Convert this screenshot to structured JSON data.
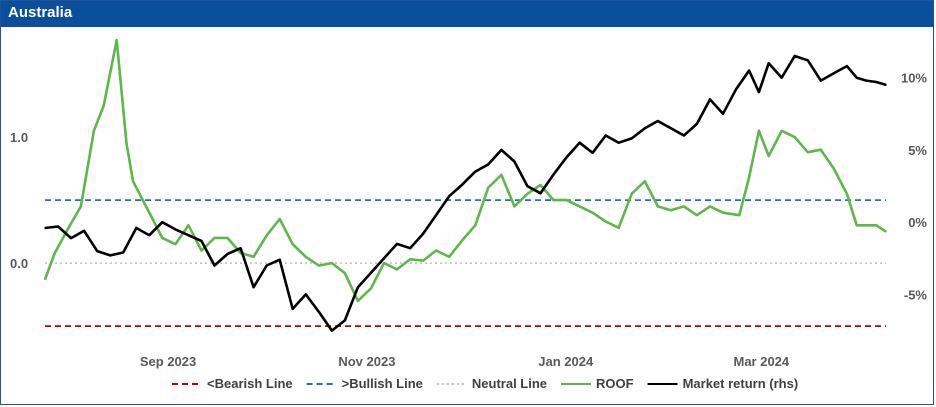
{
  "title": "Australia",
  "chart_data": {
    "type": "line",
    "title": "Australia",
    "x_ticks": [
      "Sep 2023",
      "Nov 2023",
      "Jan 2024",
      "Mar 2024"
    ],
    "y_left": {
      "ticks": [
        "0.0",
        "1.0"
      ],
      "tick_values": [
        0.0,
        1.0
      ],
      "range": [
        -0.65,
        1.85
      ]
    },
    "y_right": {
      "ticks": [
        "-5%",
        "0%",
        "5%",
        "10%"
      ],
      "tick_values": [
        -5,
        0,
        5,
        10
      ],
      "range": [
        -8.5,
        13.3
      ]
    },
    "reference_lines": [
      {
        "name": "<Bearish Line",
        "value": -0.5,
        "color": "#c00000",
        "style": "dashed"
      },
      {
        "name": ">Bullish Line",
        "value": 0.5,
        "color": "#1f6fc5",
        "style": "dashed"
      },
      {
        "name": "Neutral Line",
        "value": 0.0,
        "color": "#bfbfbf",
        "style": "dotted"
      }
    ],
    "series": [
      {
        "name": "ROOF",
        "axis": "left",
        "color": "#5cb84a",
        "x": [
          "2023-08-01",
          "2023-08-04",
          "2023-08-08",
          "2023-08-12",
          "2023-08-16",
          "2023-08-19",
          "2023-08-23",
          "2023-08-26",
          "2023-08-28",
          "2023-08-31",
          "2023-09-03",
          "2023-09-06",
          "2023-09-10",
          "2023-09-14",
          "2023-09-18",
          "2023-09-22",
          "2023-09-26",
          "2023-09-30",
          "2023-10-04",
          "2023-10-08",
          "2023-10-12",
          "2023-10-16",
          "2023-10-20",
          "2023-10-24",
          "2023-10-28",
          "2023-11-01",
          "2023-11-05",
          "2023-11-09",
          "2023-11-13",
          "2023-11-17",
          "2023-11-21",
          "2023-11-25",
          "2023-11-29",
          "2023-12-03",
          "2023-12-07",
          "2023-12-11",
          "2023-12-15",
          "2023-12-19",
          "2023-12-23",
          "2023-12-27",
          "2023-12-31",
          "2024-01-04",
          "2024-01-08",
          "2024-01-12",
          "2024-01-16",
          "2024-01-20",
          "2024-01-24",
          "2024-01-28",
          "2024-02-01",
          "2024-02-05",
          "2024-02-09",
          "2024-02-13",
          "2024-02-17",
          "2024-02-21",
          "2024-02-25",
          "2024-03-01",
          "2024-03-04",
          "2024-03-07",
          "2024-03-10",
          "2024-03-14",
          "2024-03-18",
          "2024-03-22",
          "2024-03-26",
          "2024-03-30",
          "2024-04-03",
          "2024-04-06",
          "2024-04-09",
          "2024-04-12",
          "2024-04-15"
        ],
        "values": [
          -0.13,
          0.08,
          0.27,
          0.45,
          1.05,
          1.25,
          1.77,
          0.95,
          0.65,
          0.5,
          0.35,
          0.2,
          0.15,
          0.3,
          0.1,
          0.2,
          0.2,
          0.08,
          0.05,
          0.22,
          0.35,
          0.15,
          0.05,
          -0.02,
          0.0,
          -0.08,
          -0.3,
          -0.2,
          0.0,
          -0.05,
          0.03,
          0.02,
          0.1,
          0.05,
          0.18,
          0.3,
          0.6,
          0.7,
          0.45,
          0.55,
          0.62,
          0.5,
          0.5,
          0.45,
          0.4,
          0.33,
          0.28,
          0.55,
          0.65,
          0.45,
          0.42,
          0.45,
          0.38,
          0.45,
          0.4,
          0.38,
          0.68,
          1.05,
          0.85,
          1.05,
          1.0,
          0.88,
          0.9,
          0.75,
          0.55,
          0.3,
          0.3,
          0.3,
          0.25
        ]
      },
      {
        "name": "Market return (rhs)",
        "axis": "right",
        "color": "#000000",
        "x": [
          "2023-08-01",
          "2023-08-05",
          "2023-08-09",
          "2023-08-13",
          "2023-08-17",
          "2023-08-21",
          "2023-08-25",
          "2023-08-29",
          "2023-09-02",
          "2023-09-06",
          "2023-09-10",
          "2023-09-14",
          "2023-09-18",
          "2023-09-22",
          "2023-09-26",
          "2023-09-30",
          "2023-10-04",
          "2023-10-08",
          "2023-10-12",
          "2023-10-16",
          "2023-10-20",
          "2023-10-24",
          "2023-10-28",
          "2023-11-01",
          "2023-11-05",
          "2023-11-09",
          "2023-11-13",
          "2023-11-17",
          "2023-11-21",
          "2023-11-25",
          "2023-11-29",
          "2023-12-03",
          "2023-12-07",
          "2023-12-11",
          "2023-12-15",
          "2023-12-19",
          "2023-12-23",
          "2023-12-27",
          "2023-12-31",
          "2024-01-04",
          "2024-01-08",
          "2024-01-12",
          "2024-01-16",
          "2024-01-20",
          "2024-01-24",
          "2024-01-28",
          "2024-02-01",
          "2024-02-05",
          "2024-02-09",
          "2024-02-13",
          "2024-02-17",
          "2024-02-21",
          "2024-02-25",
          "2024-02-29",
          "2024-03-04",
          "2024-03-07",
          "2024-03-10",
          "2024-03-14",
          "2024-03-18",
          "2024-03-22",
          "2024-03-26",
          "2024-03-30",
          "2024-04-03",
          "2024-04-06",
          "2024-04-09",
          "2024-04-12",
          "2024-04-15"
        ],
        "values": [
          -0.4,
          -0.3,
          -1.1,
          -0.6,
          -2.0,
          -2.3,
          -2.1,
          -0.4,
          -0.9,
          0.0,
          -0.5,
          -0.9,
          -1.3,
          -3.0,
          -2.2,
          -1.8,
          -4.5,
          -3.0,
          -2.6,
          -6.0,
          -5.0,
          -6.2,
          -7.5,
          -6.8,
          -4.5,
          -3.5,
          -2.5,
          -1.5,
          -1.8,
          -0.8,
          0.5,
          1.8,
          2.6,
          3.5,
          4.0,
          5.0,
          4.2,
          2.5,
          2.0,
          3.3,
          4.5,
          5.5,
          4.8,
          6.0,
          5.5,
          5.8,
          6.5,
          7.0,
          6.5,
          6.0,
          6.8,
          8.5,
          7.5,
          9.2,
          10.5,
          9.0,
          11.0,
          10.0,
          11.5,
          11.2,
          9.8,
          10.3,
          10.8,
          10.0,
          9.8,
          9.7,
          9.5
        ]
      }
    ],
    "legend": {
      "position": "bottom",
      "items": [
        {
          "label": "<Bearish Line",
          "color": "#c00000",
          "style": "dashed"
        },
        {
          "label": ">Bullish Line",
          "color": "#1f6fc5",
          "style": "dashed"
        },
        {
          "label": "Neutral Line",
          "color": "#bfbfbf",
          "style": "dotted"
        },
        {
          "label": "ROOF",
          "color": "#5cb84a",
          "style": "solid"
        },
        {
          "label": "Market return (rhs)",
          "color": "#000000",
          "style": "solid"
        }
      ]
    }
  }
}
